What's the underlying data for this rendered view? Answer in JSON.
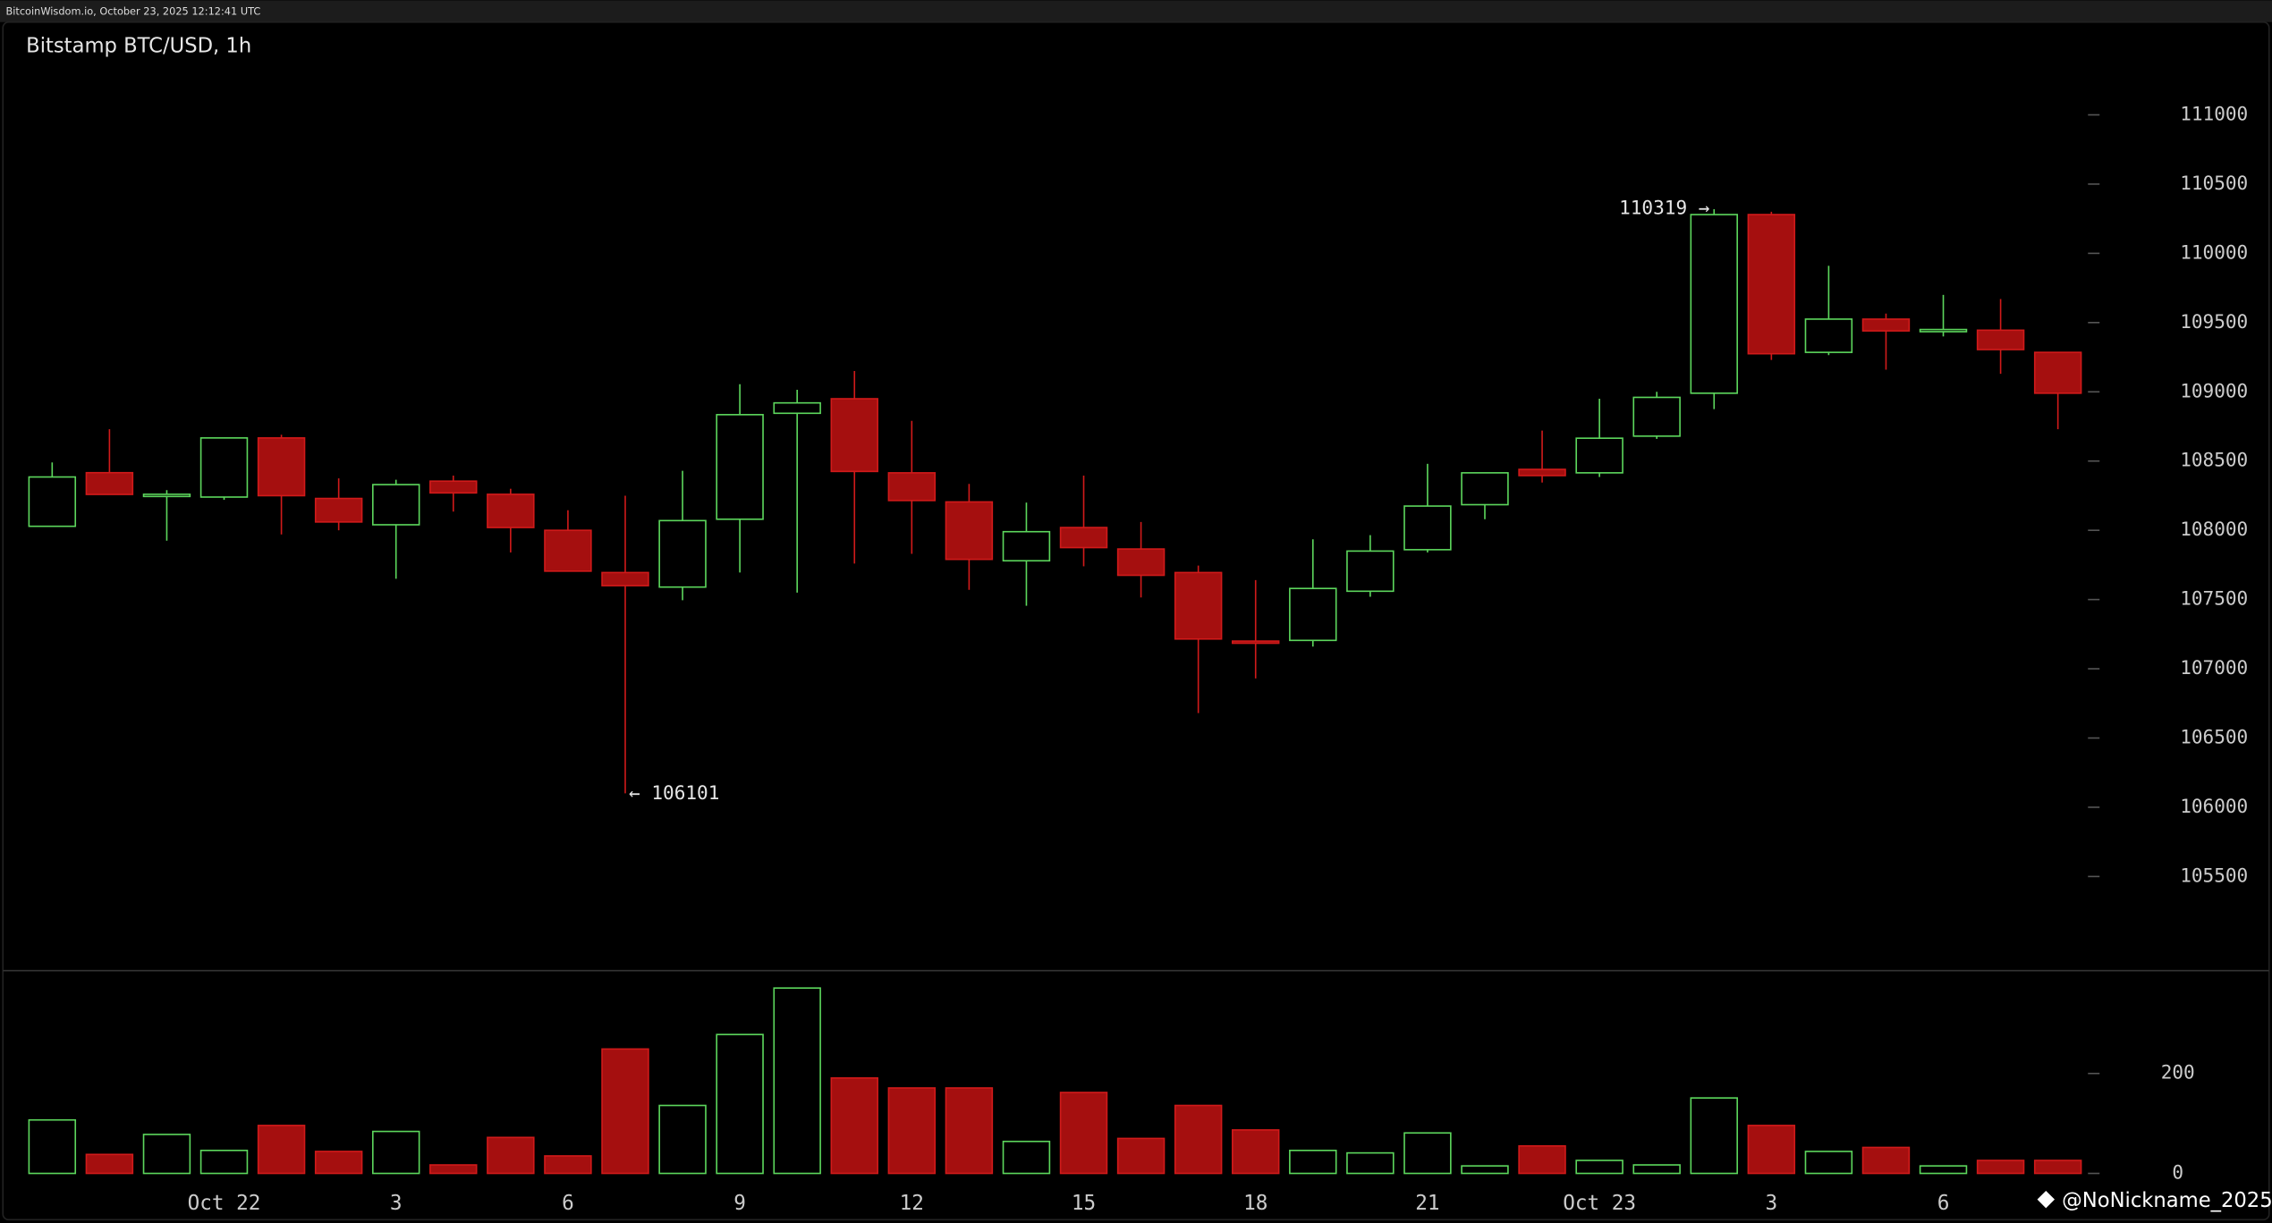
{
  "header": "BitcoinWisdom.io, October 23, 2025 12:12:41 UTC",
  "watermark": "@NoNickname_2025",
  "chart_data": [
    {
      "type": "candlestick",
      "title": "Bitstamp BTC/USD, 1h",
      "categories": [
        null,
        null,
        null,
        "Oct 22",
        null,
        null,
        "3",
        null,
        null,
        "6",
        null,
        null,
        "9",
        null,
        null,
        "12",
        null,
        null,
        "15",
        null,
        null,
        "18",
        null,
        null,
        "21",
        null,
        null,
        "Oct 23",
        null,
        null,
        "3",
        null,
        null,
        "6",
        null,
        null
      ],
      "open": [
        108029,
        108416,
        108250,
        108240,
        108667,
        108230,
        108040,
        108355,
        108260,
        108000,
        107695,
        107590,
        108080,
        108845,
        108950,
        108415,
        108205,
        107780,
        108020,
        107865,
        107695,
        107200,
        107205,
        107560,
        107860,
        108185,
        108440,
        108415,
        108680,
        108990,
        110280,
        109285,
        109525,
        109440,
        109445,
        109285
      ],
      "high": [
        108490,
        108730,
        108290,
        108670,
        108690,
        108375,
        108365,
        108395,
        108300,
        108145,
        108250,
        108430,
        109055,
        109015,
        109150,
        108790,
        108335,
        108200,
        108395,
        108060,
        107745,
        107640,
        107935,
        107965,
        108480,
        108415,
        108720,
        108950,
        109000,
        110319,
        110300,
        109910,
        109565,
        109700,
        109670,
        109285
      ],
      "low": [
        108029,
        108259,
        107925,
        108220,
        107970,
        108000,
        107650,
        108135,
        107840,
        107705,
        106101,
        107495,
        107695,
        107550,
        107760,
        107830,
        107570,
        107455,
        107740,
        107515,
        106680,
        106930,
        107160,
        107520,
        107840,
        108080,
        108345,
        108385,
        108660,
        108875,
        109230,
        109265,
        109160,
        109400,
        109130,
        108730
      ],
      "close": [
        108385,
        108259,
        108260,
        108667,
        108250,
        108060,
        108330,
        108270,
        108020,
        107705,
        107600,
        108070,
        108835,
        108920,
        108425,
        108215,
        107790,
        107990,
        107875,
        107675,
        107215,
        107190,
        107580,
        107850,
        108175,
        108415,
        108395,
        108665,
        108960,
        110280,
        109275,
        109525,
        109440,
        109450,
        109305,
        108990
      ],
      "up_color": "#5cd65c",
      "down_color": "#a50f0f",
      "ylim": [
        104820,
        111670
      ],
      "yticks": [
        105500,
        106000,
        106500,
        107000,
        107500,
        108000,
        108500,
        109000,
        109500,
        110000,
        110500,
        111000
      ],
      "annotations": [
        "110319 →",
        "← 106101"
      ]
    },
    {
      "type": "bar",
      "values": [
        107,
        38,
        78,
        46,
        96,
        44,
        84,
        17,
        72,
        35,
        249,
        136,
        278,
        371,
        191,
        171,
        171,
        64,
        162,
        70,
        136,
        87,
        46,
        41,
        81,
        15,
        55,
        26,
        17,
        151,
        96,
        44,
        52,
        15,
        26,
        26
      ],
      "ylim": [
        0,
        400
      ],
      "yticks": [
        0,
        200
      ]
    }
  ]
}
